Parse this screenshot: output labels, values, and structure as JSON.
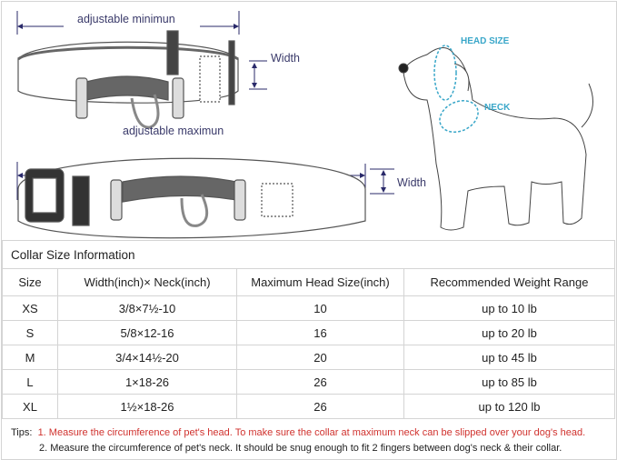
{
  "diagram": {
    "min_label": "adjustable minimun",
    "max_label": "adjustable maximun",
    "width_label_top": "Width",
    "width_label_bottom": "Width",
    "head_size_label": "HEAD SIZE",
    "neck_label": "NECK",
    "accent_color": "#3aa7c9"
  },
  "table": {
    "title": "Collar Size Information",
    "headers": [
      "Size",
      "Width(inch)× Neck(inch)",
      "Maximum Head Size(inch)",
      "Recommended Weight Range"
    ],
    "rows": [
      [
        "XS",
        "3/8×7½-10",
        "10",
        "up to 10 lb"
      ],
      [
        "S",
        "5/8×12-16",
        "16",
        "up to 20 lb"
      ],
      [
        "M",
        "3/4×14½-20",
        "20",
        "up to 45 lb"
      ],
      [
        "L",
        "1×18-26",
        "26",
        "up to 85 lb"
      ],
      [
        "XL",
        "1½×18-26",
        "26",
        "up to 120 lb"
      ]
    ]
  },
  "tips": {
    "label": "Tips:",
    "tip1": "1. Measure the circumference of pet's head.  To make sure the collar at maximum neck can be slipped over your dog's head.",
    "tip2": "2. Measure the circumference of pet's neck. It should be snug enough to fit 2 fingers between dog's neck & their collar.",
    "tip1_color": "#d0322e"
  }
}
